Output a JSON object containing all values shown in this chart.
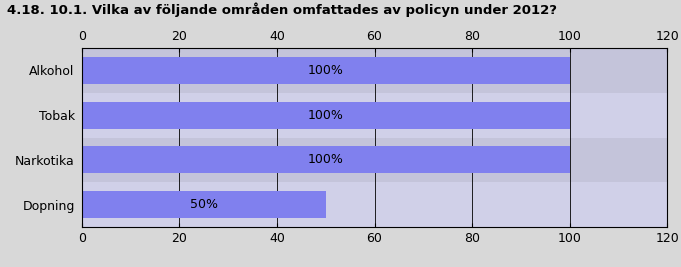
{
  "title": "4.18. 10.1. Vilka av följande områden omfattades av policyn under 2012?",
  "categories": [
    "Dopning",
    "Narkotika",
    "Tobak",
    "Alkohol"
  ],
  "values": [
    50,
    100,
    100,
    100
  ],
  "labels": [
    "50%",
    "100%",
    "100%",
    "100%"
  ],
  "bar_color": "#8080ee",
  "background_color": "#d8d8d8",
  "plot_bg_color": "#c8c8dc",
  "row_bg_even": "#d0d0e8",
  "row_bg_odd": "#c4c4da",
  "xlim": [
    0,
    120
  ],
  "xticks": [
    0,
    20,
    40,
    60,
    80,
    100,
    120
  ],
  "title_fontsize": 9.5,
  "label_fontsize": 9,
  "tick_fontsize": 9,
  "bar_height": 0.6
}
